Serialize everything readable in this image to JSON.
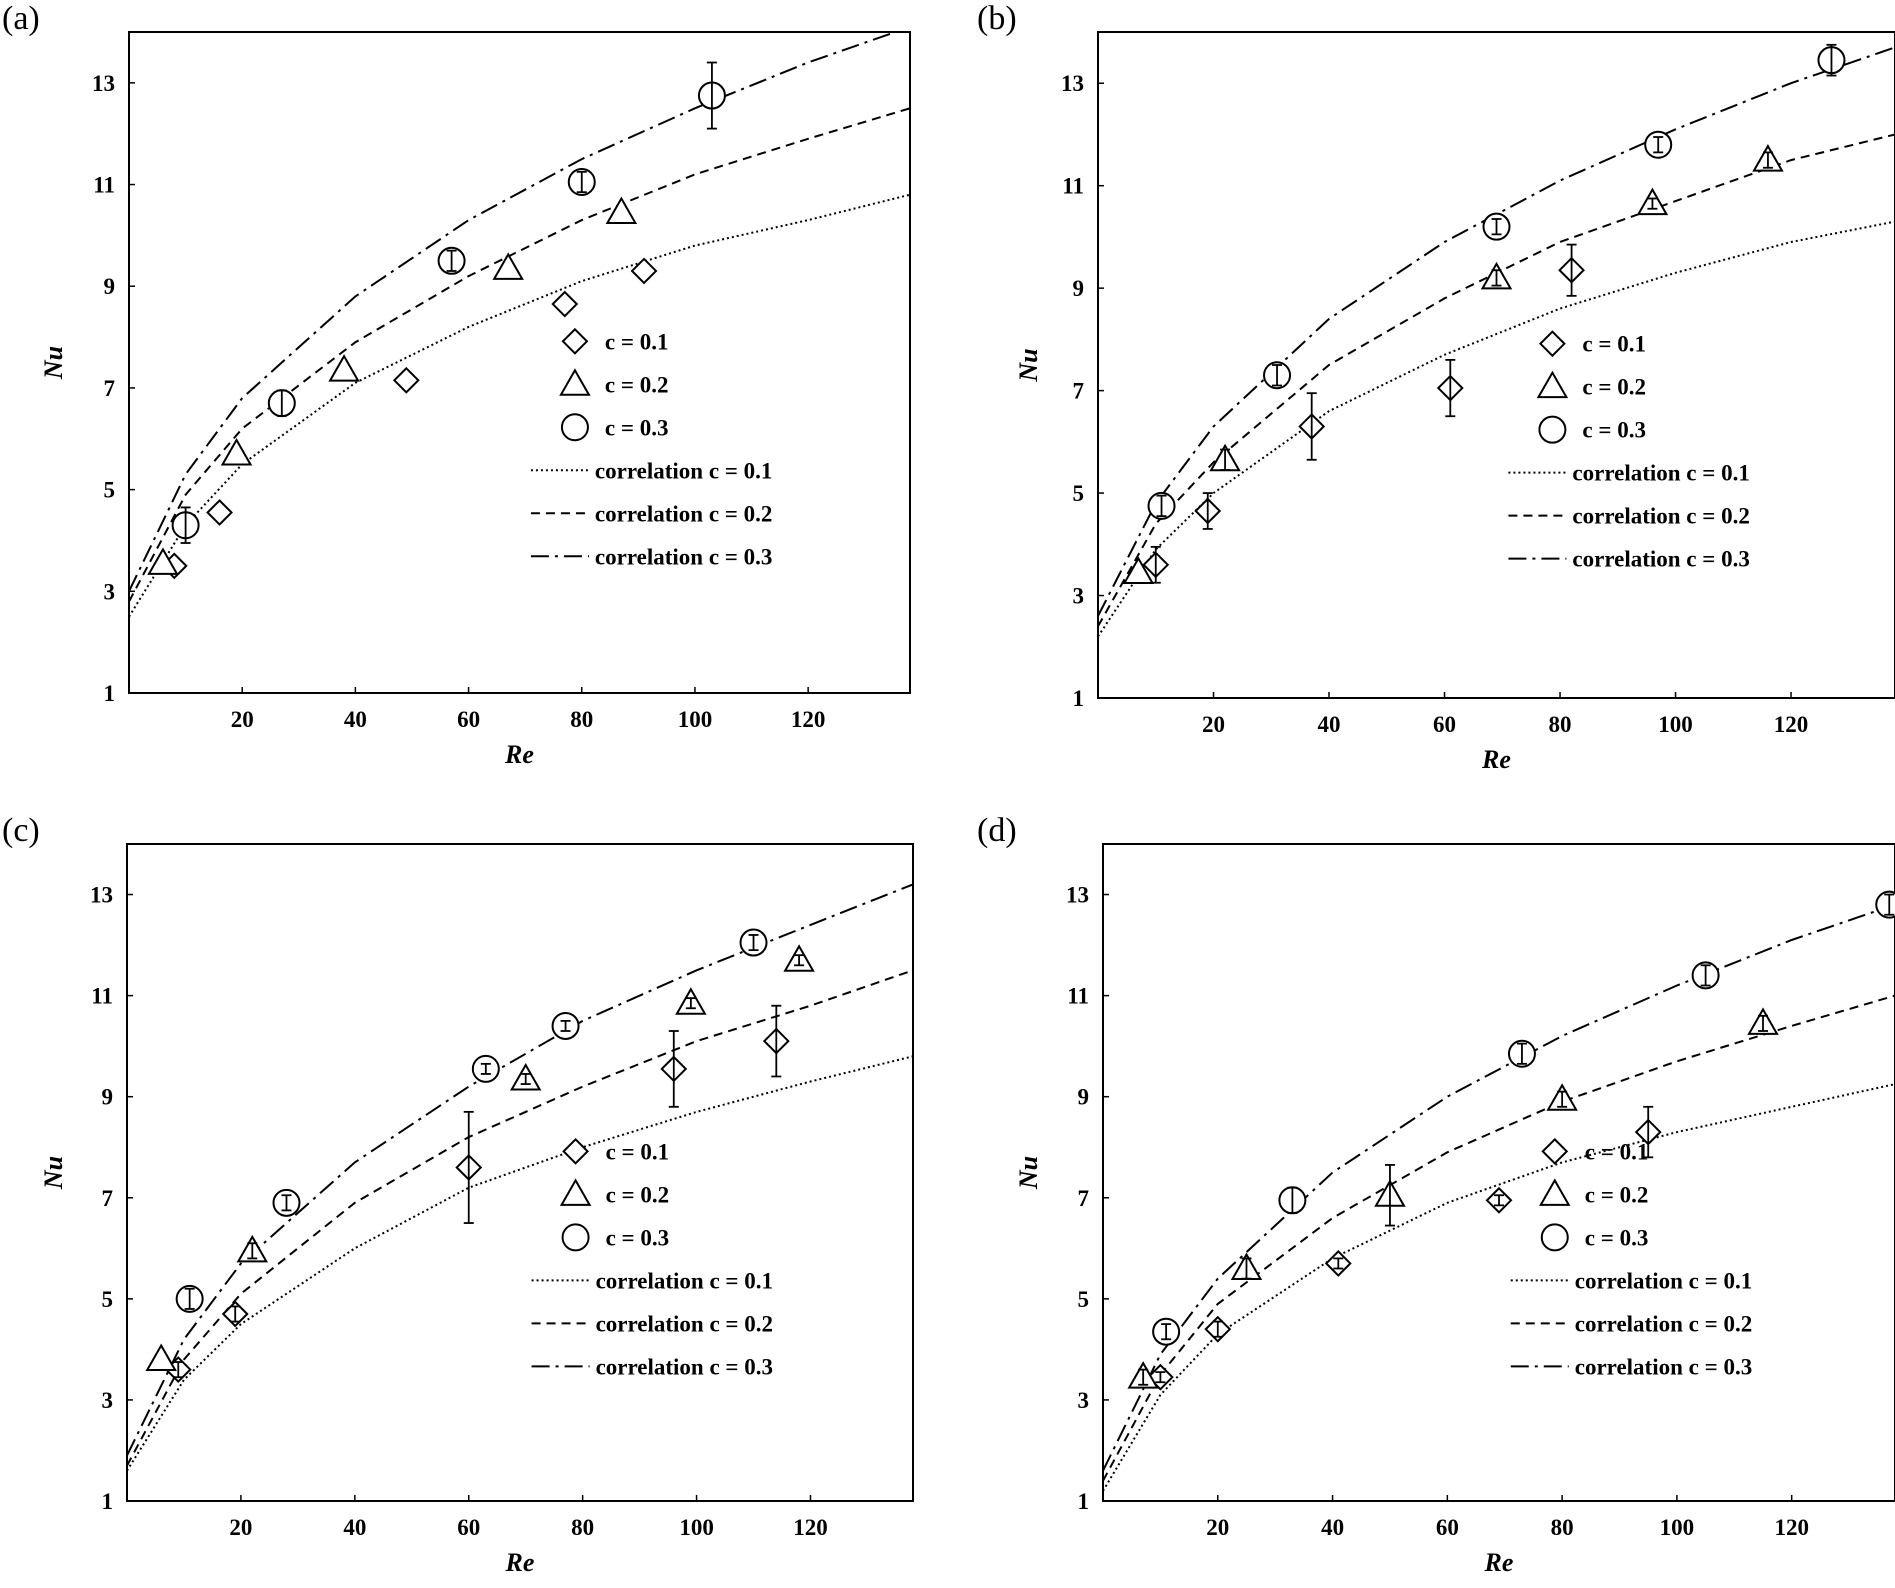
{
  "figure": {
    "legend_labels": [
      "c = 0.1",
      "c = 0.2",
      "c = 0.3",
      "correlation c = 0.1",
      "correlation c = 0.2",
      "correlation c = 0.3"
    ],
    "line_color": "#000000",
    "marker_fill": "#ffffff"
  },
  "chart_data": [
    {
      "panel": "(a)",
      "type": "scatter",
      "xlabel": "Re",
      "ylabel": "Nu",
      "xlim": [
        0,
        138
      ],
      "ylim": [
        1,
        14
      ],
      "xticks": [
        20,
        40,
        60,
        80,
        100,
        120
      ],
      "yticks": [
        1,
        3,
        5,
        7,
        9,
        11,
        13
      ],
      "legend_position": "lower-right",
      "series": [
        {
          "name": "c = 0.1",
          "marker": "diamond",
          "points": [
            {
              "x": 8,
              "y": 3.5,
              "err": 0
            },
            {
              "x": 16,
              "y": 4.55,
              "err": 0
            },
            {
              "x": 49,
              "y": 7.15,
              "err": 0
            },
            {
              "x": 77,
              "y": 8.65,
              "err": 0
            },
            {
              "x": 91,
              "y": 9.3,
              "err": 0
            }
          ]
        },
        {
          "name": "c = 0.2",
          "marker": "triangle",
          "points": [
            {
              "x": 6,
              "y": 3.55,
              "err": 0
            },
            {
              "x": 19,
              "y": 5.7,
              "err": 0
            },
            {
              "x": 38,
              "y": 7.35,
              "err": 0
            },
            {
              "x": 67,
              "y": 9.35,
              "err": 0
            },
            {
              "x": 87,
              "y": 10.45,
              "err": 0
            }
          ]
        },
        {
          "name": "c = 0.3",
          "marker": "circle",
          "points": [
            {
              "x": 10,
              "y": 4.3,
              "err": 0.35
            },
            {
              "x": 27,
              "y": 6.7,
              "err": 0.25
            },
            {
              "x": 57,
              "y": 9.5,
              "err": 0.2
            },
            {
              "x": 80,
              "y": 11.05,
              "err": 0.2
            },
            {
              "x": 103,
              "y": 12.75,
              "err": 0.65
            }
          ]
        }
      ],
      "correlations": [
        {
          "name": "correlation c = 0.1",
          "dash": "dotted",
          "points": [
            [
              0,
              2.5
            ],
            [
              10,
              4.3
            ],
            [
              20,
              5.5
            ],
            [
              40,
              7.1
            ],
            [
              60,
              8.2
            ],
            [
              80,
              9.1
            ],
            [
              100,
              9.8
            ],
            [
              120,
              10.3
            ],
            [
              138,
              10.8
            ]
          ]
        },
        {
          "name": "correlation c = 0.2",
          "dash": "dashed",
          "points": [
            [
              0,
              2.8
            ],
            [
              10,
              4.9
            ],
            [
              20,
              6.2
            ],
            [
              40,
              7.9
            ],
            [
              60,
              9.2
            ],
            [
              80,
              10.3
            ],
            [
              100,
              11.2
            ],
            [
              120,
              11.9
            ],
            [
              138,
              12.5
            ]
          ]
        },
        {
          "name": "correlation c = 0.3",
          "dash": "dashdot",
          "points": [
            [
              0,
              3.0
            ],
            [
              10,
              5.3
            ],
            [
              20,
              6.8
            ],
            [
              40,
              8.8
            ],
            [
              60,
              10.3
            ],
            [
              80,
              11.5
            ],
            [
              100,
              12.5
            ],
            [
              120,
              13.4
            ],
            [
              138,
              14.1
            ]
          ]
        }
      ]
    },
    {
      "panel": "(b)",
      "type": "scatter",
      "xlabel": "Re",
      "ylabel": "Nu",
      "xlim": [
        0,
        138
      ],
      "ylim": [
        1,
        14
      ],
      "xticks": [
        20,
        40,
        60,
        80,
        100,
        120
      ],
      "yticks": [
        1,
        3,
        5,
        7,
        9,
        11,
        13
      ],
      "legend_position": "lower-right",
      "series": [
        {
          "name": "c = 0.1",
          "marker": "diamond",
          "points": [
            {
              "x": 10,
              "y": 3.6,
              "err": 0.35
            },
            {
              "x": 19,
              "y": 4.65,
              "err": 0.35
            },
            {
              "x": 37,
              "y": 6.3,
              "err": 0.65
            },
            {
              "x": 61,
              "y": 7.05,
              "err": 0.55
            },
            {
              "x": 82,
              "y": 9.35,
              "err": 0.5
            }
          ]
        },
        {
          "name": "c = 0.2",
          "marker": "triangle",
          "points": [
            {
              "x": 7,
              "y": 3.45,
              "err": 0
            },
            {
              "x": 22,
              "y": 5.65,
              "err": 0.2
            },
            {
              "x": 69,
              "y": 9.2,
              "err": 0.15
            },
            {
              "x": 96,
              "y": 10.65,
              "err": 0.1
            },
            {
              "x": 116,
              "y": 11.5,
              "err": 0.15
            }
          ]
        },
        {
          "name": "c = 0.3",
          "marker": "circle",
          "points": [
            {
              "x": 11,
              "y": 4.75,
              "err": 0.2
            },
            {
              "x": 31,
              "y": 7.3,
              "err": 0.2
            },
            {
              "x": 69,
              "y": 10.2,
              "err": 0.15
            },
            {
              "x": 97,
              "y": 11.8,
              "err": 0.15
            },
            {
              "x": 127,
              "y": 13.45,
              "err": 0.3
            }
          ]
        }
      ],
      "correlations": [
        {
          "name": "correlation c = 0.1",
          "dash": "dotted",
          "points": [
            [
              0,
              2.2
            ],
            [
              10,
              3.9
            ],
            [
              20,
              5.0
            ],
            [
              40,
              6.6
            ],
            [
              60,
              7.7
            ],
            [
              80,
              8.6
            ],
            [
              100,
              9.3
            ],
            [
              120,
              9.9
            ],
            [
              138,
              10.3
            ]
          ]
        },
        {
          "name": "correlation c = 0.2",
          "dash": "dashed",
          "points": [
            [
              0,
              2.4
            ],
            [
              10,
              4.4
            ],
            [
              20,
              5.6
            ],
            [
              40,
              7.5
            ],
            [
              60,
              8.8
            ],
            [
              80,
              9.9
            ],
            [
              100,
              10.7
            ],
            [
              120,
              11.5
            ],
            [
              138,
              12.0
            ]
          ]
        },
        {
          "name": "correlation c = 0.3",
          "dash": "dashdot",
          "points": [
            [
              0,
              2.6
            ],
            [
              10,
              4.8
            ],
            [
              20,
              6.3
            ],
            [
              40,
              8.4
            ],
            [
              60,
              9.9
            ],
            [
              80,
              11.1
            ],
            [
              100,
              12.1
            ],
            [
              120,
              13.0
            ],
            [
              138,
              13.7
            ]
          ]
        }
      ]
    },
    {
      "panel": "(c)",
      "type": "scatter",
      "xlabel": "Re",
      "ylabel": "Nu",
      "xlim": [
        0,
        138
      ],
      "ylim": [
        1,
        14
      ],
      "xticks": [
        20,
        40,
        60,
        80,
        100,
        120
      ],
      "yticks": [
        1,
        3,
        5,
        7,
        9,
        11,
        13
      ],
      "legend_position": "lower-right",
      "series": [
        {
          "name": "c = 0.1",
          "marker": "diamond",
          "points": [
            {
              "x": 9,
              "y": 3.6,
              "err": 0.15
            },
            {
              "x": 19,
              "y": 4.7,
              "err": 0.15
            },
            {
              "x": 60,
              "y": 7.6,
              "err": 1.1
            },
            {
              "x": 96,
              "y": 9.55,
              "err": 0.75
            },
            {
              "x": 114,
              "y": 10.1,
              "err": 0.7
            }
          ]
        },
        {
          "name": "c = 0.2",
          "marker": "triangle",
          "points": [
            {
              "x": 6,
              "y": 3.8,
              "err": 0
            },
            {
              "x": 22,
              "y": 5.95,
              "err": 0.15
            },
            {
              "x": 70,
              "y": 9.35,
              "err": 0.1
            },
            {
              "x": 99,
              "y": 10.85,
              "err": 0.1
            },
            {
              "x": 118,
              "y": 11.7,
              "err": 0.1
            }
          ]
        },
        {
          "name": "c = 0.3",
          "marker": "circle",
          "points": [
            {
              "x": 11,
              "y": 5.0,
              "err": 0.2
            },
            {
              "x": 28,
              "y": 6.9,
              "err": 0.15
            },
            {
              "x": 63,
              "y": 9.55,
              "err": 0.1
            },
            {
              "x": 77,
              "y": 10.4,
              "err": 0.1
            },
            {
              "x": 110,
              "y": 12.05,
              "err": 0.15
            }
          ]
        }
      ],
      "correlations": [
        {
          "name": "correlation c = 0.1",
          "dash": "dotted",
          "points": [
            [
              0,
              1.6
            ],
            [
              10,
              3.4
            ],
            [
              20,
              4.5
            ],
            [
              40,
              6.0
            ],
            [
              60,
              7.2
            ],
            [
              80,
              8.0
            ],
            [
              100,
              8.7
            ],
            [
              120,
              9.3
            ],
            [
              138,
              9.8
            ]
          ]
        },
        {
          "name": "correlation c = 0.2",
          "dash": "dashed",
          "points": [
            [
              0,
              1.7
            ],
            [
              10,
              3.8
            ],
            [
              20,
              5.1
            ],
            [
              40,
              6.9
            ],
            [
              60,
              8.2
            ],
            [
              80,
              9.2
            ],
            [
              100,
              10.1
            ],
            [
              120,
              10.8
            ],
            [
              138,
              11.5
            ]
          ]
        },
        {
          "name": "correlation c = 0.3",
          "dash": "dashdot",
          "points": [
            [
              0,
              1.9
            ],
            [
              10,
              4.2
            ],
            [
              20,
              5.7
            ],
            [
              40,
              7.7
            ],
            [
              60,
              9.2
            ],
            [
              80,
              10.5
            ],
            [
              100,
              11.5
            ],
            [
              120,
              12.4
            ],
            [
              138,
              13.2
            ]
          ]
        }
      ]
    },
    {
      "panel": "(d)",
      "type": "scatter",
      "xlabel": "Re",
      "ylabel": "Nu",
      "xlim": [
        0,
        138
      ],
      "ylim": [
        1,
        14
      ],
      "xticks": [
        20,
        40,
        60,
        80,
        100,
        120
      ],
      "yticks": [
        1,
        3,
        5,
        7,
        9,
        11,
        13
      ],
      "legend_position": "lower-right",
      "series": [
        {
          "name": "c = 0.1",
          "marker": "diamond",
          "points": [
            {
              "x": 10,
              "y": 3.45,
              "err": 0.1
            },
            {
              "x": 20,
              "y": 4.4,
              "err": 0.15
            },
            {
              "x": 41,
              "y": 5.7,
              "err": 0.1
            },
            {
              "x": 69,
              "y": 6.95,
              "err": 0.1
            },
            {
              "x": 95,
              "y": 8.3,
              "err": 0.5
            }
          ]
        },
        {
          "name": "c = 0.2",
          "marker": "triangle",
          "points": [
            {
              "x": 7,
              "y": 3.45,
              "err": 0.15
            },
            {
              "x": 25,
              "y": 5.6,
              "err": 0.2
            },
            {
              "x": 50,
              "y": 7.05,
              "err": 0.6
            },
            {
              "x": 80,
              "y": 8.95,
              "err": 0.15
            },
            {
              "x": 115,
              "y": 10.45,
              "err": 0.15
            }
          ]
        },
        {
          "name": "c = 0.3",
          "marker": "circle",
          "points": [
            {
              "x": 11,
              "y": 4.35,
              "err": 0.15
            },
            {
              "x": 33,
              "y": 6.95,
              "err": 0.25
            },
            {
              "x": 73,
              "y": 9.85,
              "err": 0.2
            },
            {
              "x": 105,
              "y": 11.4,
              "err": 0.2
            },
            {
              "x": 137,
              "y": 12.8,
              "err": 0.2
            }
          ]
        }
      ],
      "correlations": [
        {
          "name": "correlation c = 0.1",
          "dash": "dotted",
          "points": [
            [
              0,
              1.2
            ],
            [
              10,
              3.1
            ],
            [
              20,
              4.3
            ],
            [
              40,
              5.8
            ],
            [
              60,
              6.9
            ],
            [
              80,
              7.7
            ],
            [
              100,
              8.3
            ],
            [
              120,
              8.8
            ],
            [
              138,
              9.25
            ]
          ]
        },
        {
          "name": "correlation c = 0.2",
          "dash": "dashed",
          "points": [
            [
              0,
              1.4
            ],
            [
              10,
              3.5
            ],
            [
              20,
              4.9
            ],
            [
              40,
              6.6
            ],
            [
              60,
              7.9
            ],
            [
              80,
              8.9
            ],
            [
              100,
              9.7
            ],
            [
              120,
              10.4
            ],
            [
              138,
              11.0
            ]
          ]
        },
        {
          "name": "correlation c = 0.3",
          "dash": "dashdot",
          "points": [
            [
              0,
              1.6
            ],
            [
              10,
              3.9
            ],
            [
              20,
              5.4
            ],
            [
              40,
              7.5
            ],
            [
              60,
              9.0
            ],
            [
              80,
              10.2
            ],
            [
              100,
              11.2
            ],
            [
              120,
              12.1
            ],
            [
              138,
              12.8
            ]
          ]
        }
      ]
    }
  ]
}
